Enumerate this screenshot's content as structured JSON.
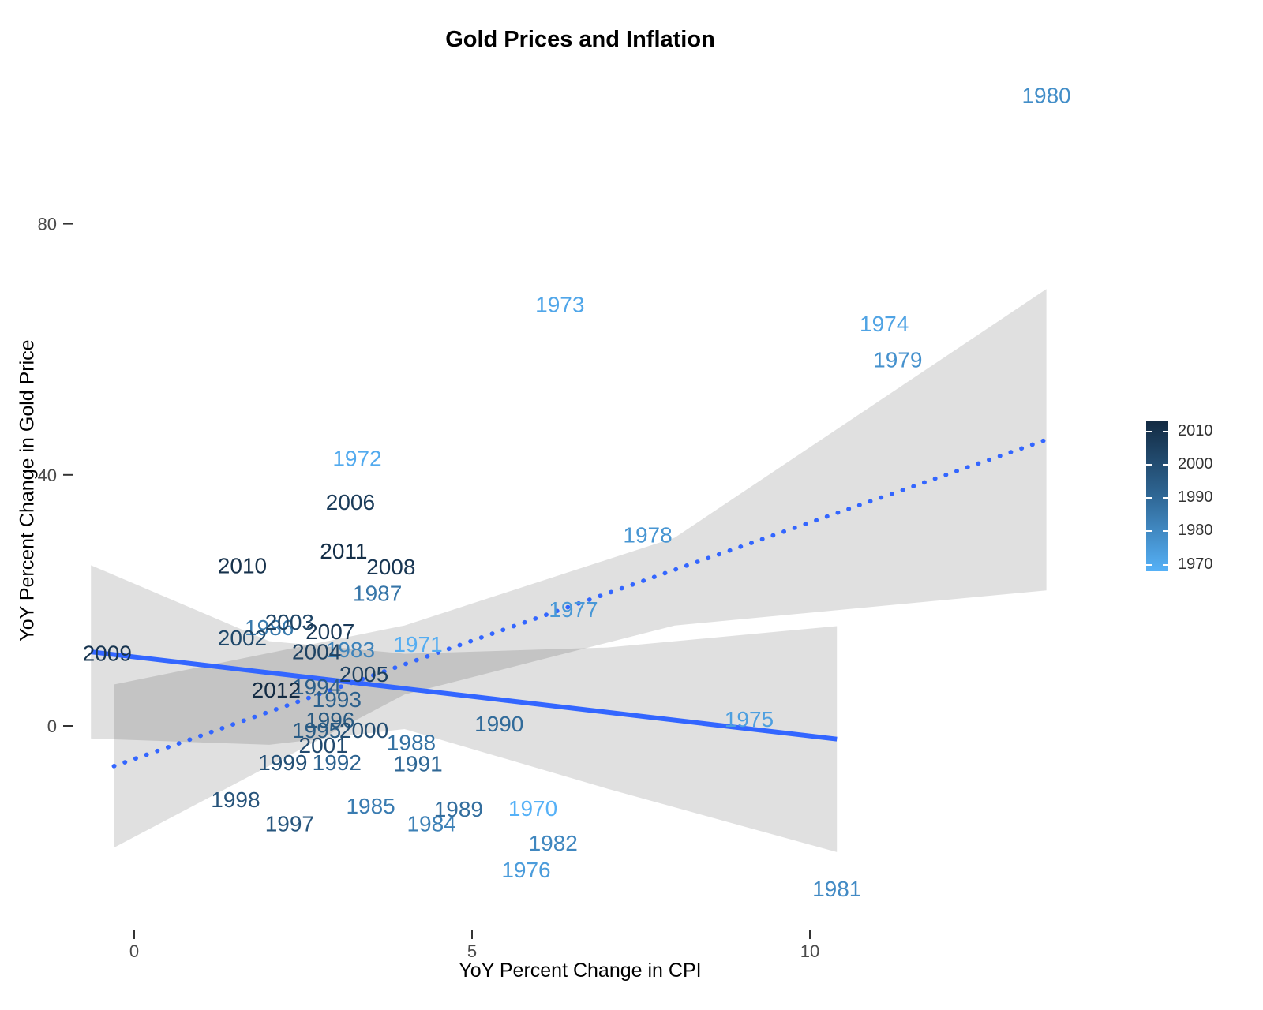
{
  "title": "Gold Prices and Inflation",
  "chart_data": {
    "type": "scatter",
    "title": "Gold Prices and Inflation",
    "xlabel": "YoY Percent Change in CPI",
    "ylabel": "YoY Percent Change in Gold Price",
    "xlim": [
      -1,
      14.2
    ],
    "ylim": [
      -34,
      110
    ],
    "grid": false,
    "legend_position": "right",
    "point_style": "year-text-labels-colored-by-year",
    "axes": {
      "x": {
        "ticks": [
          0,
          5,
          10
        ]
      },
      "y": {
        "ticks": [
          0,
          40,
          80
        ]
      }
    },
    "color_scale": {
      "min_year": 1970,
      "max_year": 2012,
      "low_color": "#56B1F7",
      "mid_color": "#2F6795",
      "high_color": "#132B43"
    },
    "points": [
      {
        "year": 1970,
        "cpi": 5.9,
        "gold": -13.1
      },
      {
        "year": 1971,
        "cpi": 4.2,
        "gold": 13.1
      },
      {
        "year": 1972,
        "cpi": 3.3,
        "gold": 42.7
      },
      {
        "year": 1973,
        "cpi": 6.3,
        "gold": 67.2
      },
      {
        "year": 1974,
        "cpi": 11.1,
        "gold": 64.1
      },
      {
        "year": 1975,
        "cpi": 9.1,
        "gold": 1.1
      },
      {
        "year": 1976,
        "cpi": 5.8,
        "gold": -22.9
      },
      {
        "year": 1977,
        "cpi": 6.5,
        "gold": 18.6
      },
      {
        "year": 1978,
        "cpi": 7.6,
        "gold": 30.5
      },
      {
        "year": 1979,
        "cpi": 11.3,
        "gold": 58.4
      },
      {
        "year": 1980,
        "cpi": 13.5,
        "gold": 100.5
      },
      {
        "year": 1981,
        "cpi": 10.4,
        "gold": -25.9
      },
      {
        "year": 1982,
        "cpi": 6.2,
        "gold": -18.6
      },
      {
        "year": 1983,
        "cpi": 3.2,
        "gold": 12.2
      },
      {
        "year": 1984,
        "cpi": 4.4,
        "gold": -15.5
      },
      {
        "year": 1985,
        "cpi": 3.5,
        "gold": -12.7
      },
      {
        "year": 1986,
        "cpi": 2.0,
        "gold": 15.7
      },
      {
        "year": 1987,
        "cpi": 3.6,
        "gold": 21.2
      },
      {
        "year": 1988,
        "cpi": 4.1,
        "gold": -2.6
      },
      {
        "year": 1989,
        "cpi": 4.8,
        "gold": -13.2
      },
      {
        "year": 1990,
        "cpi": 5.4,
        "gold": 0.4
      },
      {
        "year": 1991,
        "cpi": 4.2,
        "gold": -6.0
      },
      {
        "year": 1992,
        "cpi": 3.0,
        "gold": -5.8
      },
      {
        "year": 1993,
        "cpi": 3.0,
        "gold": 4.3
      },
      {
        "year": 1994,
        "cpi": 2.7,
        "gold": 6.3
      },
      {
        "year": 1995,
        "cpi": 2.7,
        "gold": -0.6
      },
      {
        "year": 1996,
        "cpi": 2.9,
        "gold": 1.0
      },
      {
        "year": 1997,
        "cpi": 2.3,
        "gold": -15.5
      },
      {
        "year": 1998,
        "cpi": 1.5,
        "gold": -11.7
      },
      {
        "year": 1999,
        "cpi": 2.2,
        "gold": -5.8
      },
      {
        "year": 2000,
        "cpi": 3.4,
        "gold": -0.6
      },
      {
        "year": 2001,
        "cpi": 2.8,
        "gold": -3.0
      },
      {
        "year": 2002,
        "cpi": 1.6,
        "gold": 14.1
      },
      {
        "year": 2003,
        "cpi": 2.3,
        "gold": 16.6
      },
      {
        "year": 2004,
        "cpi": 2.7,
        "gold": 11.9
      },
      {
        "year": 2005,
        "cpi": 3.4,
        "gold": 8.3
      },
      {
        "year": 2006,
        "cpi": 3.2,
        "gold": 35.7
      },
      {
        "year": 2007,
        "cpi": 2.9,
        "gold": 15.1
      },
      {
        "year": 2008,
        "cpi": 3.8,
        "gold": 25.4
      },
      {
        "year": 2009,
        "cpi": -0.4,
        "gold": 11.6
      },
      {
        "year": 2010,
        "cpi": 1.6,
        "gold": 25.6
      },
      {
        "year": 2011,
        "cpi": 3.1,
        "gold": 27.9
      },
      {
        "year": 2012,
        "cpi": 2.1,
        "gold": 5.8
      }
    ],
    "trend_lines": [
      {
        "name": "solid-fit",
        "style": "solid",
        "color": "#3366FF",
        "x": [
          -0.64,
          10.4
        ],
        "y": [
          11.8,
          -2.1
        ]
      },
      {
        "name": "dotted-fit",
        "style": "dotted",
        "color": "#3366FF",
        "x": [
          -0.3,
          13.5
        ],
        "y": [
          -6.4,
          45.6
        ]
      }
    ],
    "confidence_bands": [
      {
        "name": "solid-fit-ci",
        "points": [
          [
            -0.64,
            25.6
          ],
          [
            2,
            13.5
          ],
          [
            4,
            11.5
          ],
          [
            7,
            12.5
          ],
          [
            10.4,
            15.9
          ],
          [
            10.4,
            -20.1
          ],
          [
            7,
            -10.0
          ],
          [
            4,
            -0.5
          ],
          [
            2,
            -3.0
          ],
          [
            -0.64,
            -2.0
          ]
        ]
      },
      {
        "name": "dotted-fit-ci",
        "points": [
          [
            -0.3,
            6.6
          ],
          [
            4,
            16.0
          ],
          [
            8,
            30.0
          ],
          [
            13.5,
            69.6
          ],
          [
            13.5,
            21.6
          ],
          [
            8,
            16.0
          ],
          [
            4,
            5.0
          ],
          [
            -0.3,
            -19.4
          ]
        ]
      }
    ]
  },
  "legend": {
    "ticks": [
      2010,
      2000,
      1990,
      1980,
      1970
    ]
  }
}
